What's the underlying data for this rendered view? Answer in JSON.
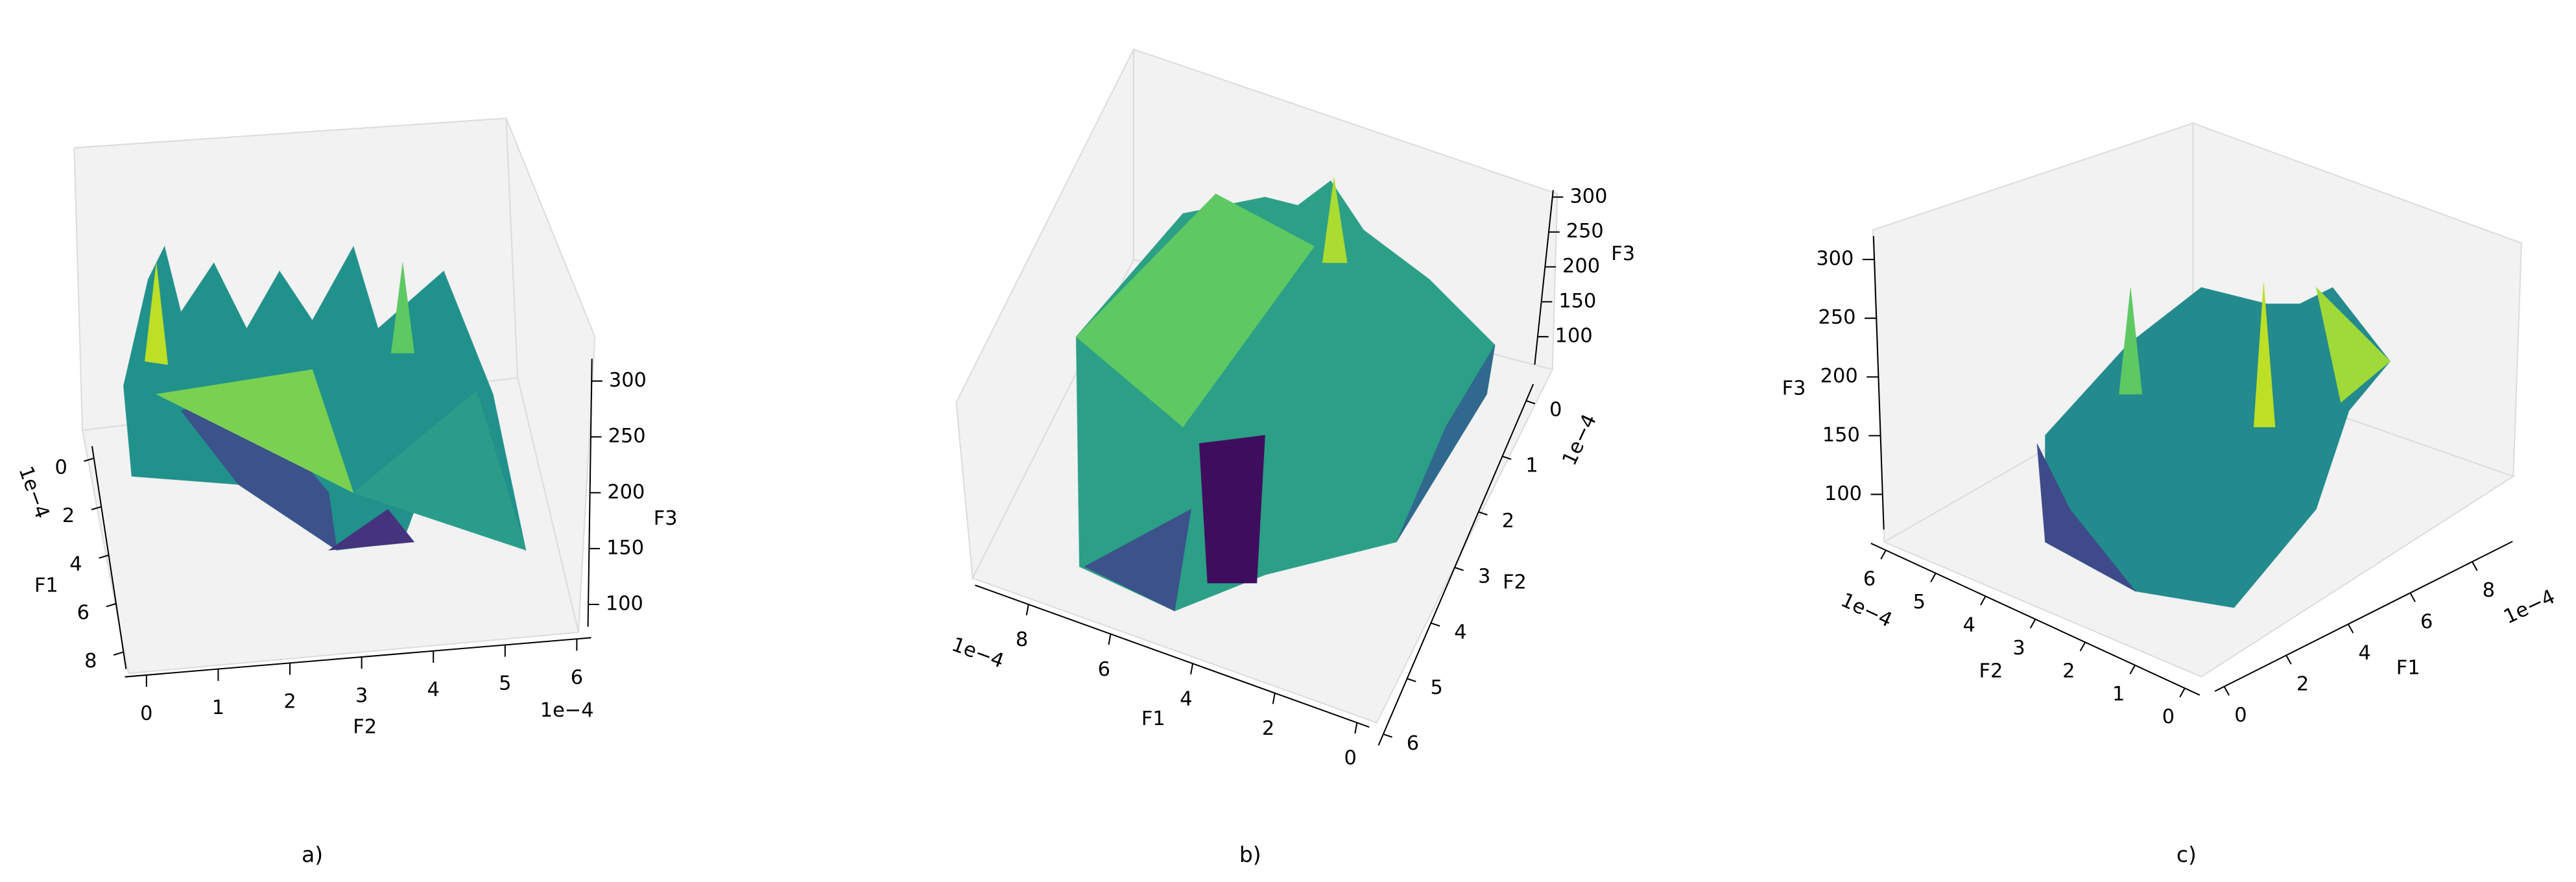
{
  "chart_data": [
    {
      "type": "surface3d",
      "caption": "a)",
      "xlabel": "F1",
      "ylabel": "F2",
      "zlabel": "F3",
      "x_offset_text": "1e−4",
      "y_offset_text": "1e−4",
      "xlim": [
        -0.5,
        8.7
      ],
      "ylim": [
        -0.3,
        6.2
      ],
      "zlim": [
        80,
        320
      ],
      "xticks": [
        0,
        2,
        4,
        6,
        8
      ],
      "yticks": [
        0,
        1,
        2,
        3,
        4,
        5,
        6
      ],
      "zticks": [
        100,
        150,
        200,
        250,
        300
      ]
    },
    {
      "type": "surface3d",
      "caption": "b)",
      "xlabel": "F1",
      "ylabel": "F2",
      "zlabel": "F3",
      "x_offset_text": "1e−4",
      "y_offset_text": "1e−4",
      "xlim": [
        -0.3,
        9.3
      ],
      "ylim": [
        -0.3,
        6.2
      ],
      "zlim": [
        60,
        310
      ],
      "xticks": [
        0,
        2,
        4,
        6,
        8
      ],
      "yticks": [
        0,
        1,
        2,
        3,
        4,
        5,
        6
      ],
      "zticks": [
        100,
        150,
        200,
        250,
        300
      ]
    },
    {
      "type": "surface3d",
      "caption": "c)",
      "xlabel": "F1",
      "ylabel": "F2",
      "zlabel": "F3",
      "x_offset_text": "1e−4",
      "y_offset_text": "1e−4",
      "xlim": [
        -0.3,
        9.3
      ],
      "ylim": [
        -0.3,
        6.3
      ],
      "zlim": [
        70,
        320
      ],
      "xticks": [
        0,
        2,
        4,
        6,
        8
      ],
      "yticks": [
        0,
        1,
        2,
        3,
        4,
        5,
        6
      ],
      "zticks": [
        100,
        150,
        200,
        250,
        300
      ]
    }
  ]
}
